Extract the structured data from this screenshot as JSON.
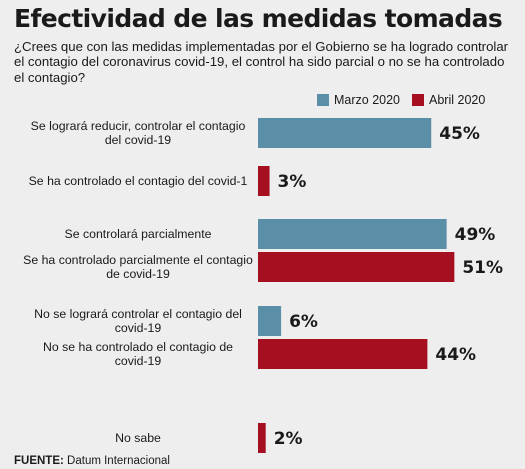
{
  "title": "Efectividad de las medidas tomadas",
  "question": "¿Crees que con las medidas implementadas por el Gobierno se ha logrado controlar el contagio del coronavirus covid-19, el control ha sido parcial o no se ha controlado el contagio?",
  "legend": [
    {
      "name": "Marzo 2020",
      "color": "#5b8fa8"
    },
    {
      "name": "Abril 2020",
      "color": "#a50f1f"
    }
  ],
  "source_label": "FUENTE:",
  "source_value": "Datum Internacional",
  "chart_data": {
    "type": "bar",
    "orientation": "horizontal",
    "unit": "%",
    "bars": [
      {
        "label": [
          "Se logrará reducir, controlar el contagio",
          "del covid-19"
        ],
        "series": "Marzo 2020",
        "value": 45,
        "text": "45%"
      },
      {
        "label": [
          "Se ha controlado el contagio del covid-1"
        ],
        "series": "Abril 2020",
        "value": 3,
        "text": "3%"
      },
      {
        "label": [
          "Se controlará parcialmente"
        ],
        "series": "Marzo 2020",
        "value": 49,
        "text": "49%"
      },
      {
        "label": [
          "Se ha controlado parcialmente el contagio",
          "de covid-19"
        ],
        "series": "Abril 2020",
        "value": 51,
        "text": "51%"
      },
      {
        "label": [
          "No se logrará controlar el contagio del",
          "covid-19"
        ],
        "series": "Marzo 2020",
        "value": 6,
        "text": "6%"
      },
      {
        "label": [
          "No se ha controlado el contagio de",
          "covid-19"
        ],
        "series": "Abril 2020",
        "value": 44,
        "text": "44%"
      },
      {
        "label": [
          "No sabe"
        ],
        "series": "Abril 2020",
        "value": 2,
        "text": "2%"
      }
    ]
  }
}
